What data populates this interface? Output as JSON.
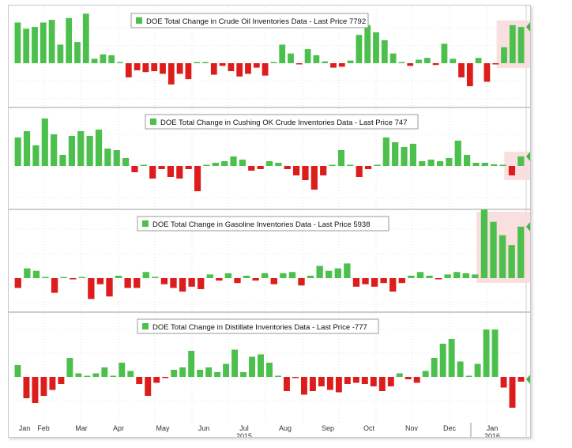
{
  "chart_data": [
    {
      "type": "bar",
      "title": "DOE Total Change in Crude Oil Inventories Data - Last Price 7792",
      "last_price_label": "7792",
      "colors": {
        "positive": "#4cc04c",
        "negative": "#dd1c1c",
        "highlight": "#f8dcdc"
      },
      "highlight_last_n": 3,
      "values": [
        4.6,
        3.9,
        4.1,
        4.6,
        4.9,
        2.1,
        5.1,
        2.4,
        5.6,
        0.5,
        1.0,
        0.9,
        0,
        -1.6,
        -0.8,
        -1.0,
        -0.9,
        -1.2,
        -2.4,
        -1.2,
        -1.8,
        0.1,
        0,
        -1.3,
        -0.3,
        -0.9,
        -1.5,
        -1.2,
        -0.5,
        -1.4,
        0.1,
        2.1,
        1.1,
        -0.1,
        1.6,
        0.9,
        0.2,
        -0.5,
        -0.4,
        0.3,
        3.2,
        4.3,
        3.5,
        2.6,
        1.1,
        0.1,
        -0.3,
        0.4,
        0.6,
        -0.2,
        2.2,
        0.5,
        -1.6,
        -2.6,
        0.6,
        -2.1,
        -0.1,
        1.8,
        4.3,
        4.1
      ]
    },
    {
      "type": "bar",
      "title": "DOE Total Change in Cushing OK Crude Inventories Data - Last Price 747",
      "last_price_label": "747",
      "colors": {
        "positive": "#4cc04c",
        "negative": "#dd1c1c",
        "highlight": "#f8dcdc"
      },
      "highlight_last_n": 2,
      "values": [
        1.8,
        2.2,
        1.3,
        3.0,
        2.0,
        0.7,
        1.9,
        2.2,
        1.9,
        2.3,
        1.1,
        1.0,
        0.5,
        -0.4,
        0,
        -0.8,
        -0.2,
        -0.7,
        -0.8,
        -0.2,
        -1.6,
        0,
        0.2,
        0.3,
        0.6,
        0.4,
        -0.3,
        -0.2,
        0.3,
        0.2,
        -0.2,
        -0.6,
        -0.9,
        -1.5,
        -0.6,
        0,
        1.0,
        0,
        -0.7,
        -0.2,
        0,
        1.8,
        1.5,
        1.2,
        1.4,
        0.3,
        0.4,
        0.3,
        0.5,
        1.6,
        0.7,
        0.2,
        0.2,
        0.1,
        0,
        -0.6,
        0.6
      ]
    },
    {
      "type": "bar",
      "title": "DOE Total Change in Gasoline Inventories Data - Last Price 5938",
      "last_price_label": "5938",
      "colors": {
        "positive": "#4cc04c",
        "negative": "#dd1c1c",
        "highlight": "#f8dcdc"
      },
      "highlight_last_n": 5,
      "values": [
        -0.8,
        0.8,
        0.6,
        0.1,
        -1.2,
        0,
        -0.1,
        0,
        -1.7,
        -0.5,
        -1.5,
        0.2,
        -0.8,
        -0.8,
        0.5,
        0.1,
        -0.5,
        -0.8,
        -1.1,
        -0.7,
        -0.9,
        0.3,
        -0.2,
        0.4,
        -0.4,
        0.2,
        -0.2,
        0.4,
        -0.5,
        0.4,
        0.5,
        -0.6,
        0.2,
        1.0,
        0.6,
        0.8,
        1.2,
        -0.7,
        -0.5,
        -0.7,
        -0.4,
        -1.1,
        -0.4,
        0.2,
        0.5,
        0.2,
        -0.1,
        0.3,
        0.5,
        0.4,
        0.3,
        5.6,
        4.6,
        3.5,
        2.7,
        4.2
      ]
    },
    {
      "type": "bar",
      "title": "DOE Total Change in Distillate Inventories Data - Last Price -777",
      "last_price_label": "-777",
      "colors": {
        "positive": "#4cc04c",
        "negative": "#dd1c1c",
        "highlight": "#f8dcdc"
      },
      "highlight_last_n": 0,
      "values": [
        1.0,
        -1.8,
        -2.2,
        -1.6,
        -1.1,
        -0.6,
        1.6,
        0.3,
        0.1,
        0.3,
        0.8,
        0.1,
        1.2,
        0.5,
        -0.6,
        -1.6,
        -0.5,
        -0.1,
        0.6,
        0.8,
        2.2,
        0.6,
        0.8,
        0.4,
        1.1,
        2.3,
        0.4,
        1.7,
        1.9,
        1.2,
        0.1,
        -1.2,
        -0.1,
        -1.5,
        -1.2,
        -0.8,
        -1.1,
        -1.3,
        -0.6,
        -0.5,
        -0.6,
        -0.8,
        -1.2,
        -0.8,
        0.3,
        -0.2,
        -0.5,
        0.5,
        1.6,
        2.8,
        3.2,
        1.3,
        0,
        1.1,
        4.0,
        4.0,
        -0.9,
        -2.6,
        -0.4
      ]
    }
  ],
  "x_axis": {
    "month_labels": [
      "Jan",
      "Feb",
      "Mar",
      "Apr",
      "May",
      "Jun",
      "Jul",
      "Aug",
      "Sep",
      "Oct",
      "Nov",
      "Dec",
      "Jan"
    ],
    "year_labels": [
      "2015",
      "2016"
    ]
  }
}
